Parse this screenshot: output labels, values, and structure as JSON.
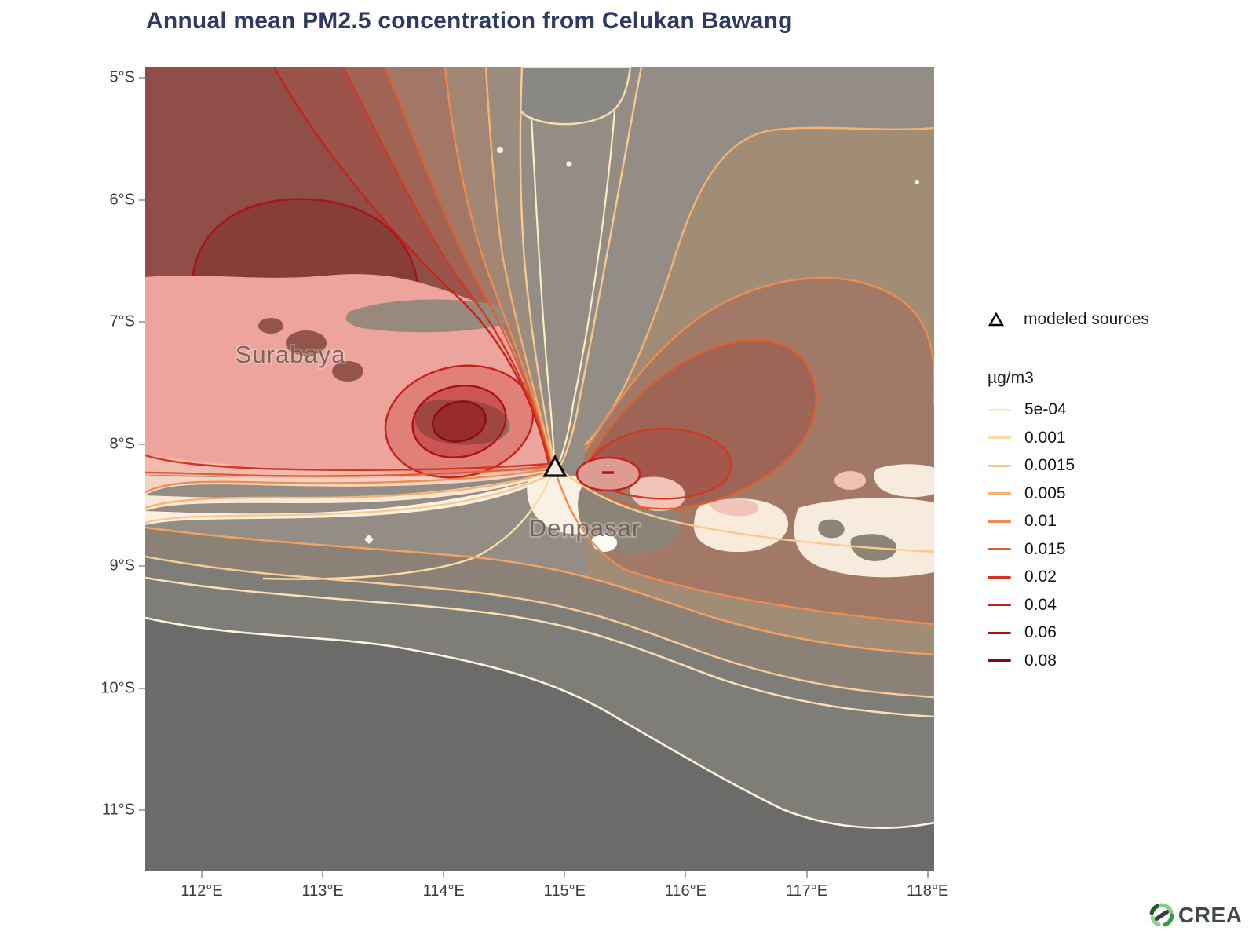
{
  "title": "Annual mean PM2.5 concentration from Celukan Bawang",
  "legend": {
    "marker_label": "modeled sources",
    "unit_label": "µg/m3"
  },
  "branding": {
    "logo_text": "CREA"
  },
  "map_colors": {
    "ocean_dark": "#6B6B6A",
    "sea_base_gray": "#938D85",
    "land_cream": "#F9EBDC",
    "plume_dark_red_sea": "#873D38",
    "plume_pink_land": "#ECA49D"
  },
  "chart_data": {
    "type": "contour_map",
    "title": "Annual mean PM2.5 concentration from Celukan Bawang",
    "unit": "µg/m3",
    "legend_position": "right",
    "levels": [
      {
        "label": "5e-04",
        "value": 0.0005,
        "color": "#FDEDC2"
      },
      {
        "label": "0.001",
        "value": 0.001,
        "color": "#FBDCA4"
      },
      {
        "label": "0.0015",
        "value": 0.0015,
        "color": "#F9C98D"
      },
      {
        "label": "0.005",
        "value": 0.005,
        "color": "#F7B272"
      },
      {
        "label": "0.01",
        "value": 0.01,
        "color": "#F08C50"
      },
      {
        "label": "0.015",
        "value": 0.015,
        "color": "#E25E31"
      },
      {
        "label": "0.02",
        "value": 0.02,
        "color": "#D03722"
      },
      {
        "label": "0.04",
        "value": 0.04,
        "color": "#C3231B"
      },
      {
        "label": "0.06",
        "value": 0.06,
        "color": "#A91318"
      },
      {
        "label": "0.08",
        "value": 0.08,
        "color": "#8E0A12"
      }
    ],
    "x_axis": {
      "labels": [
        "112°E",
        "113°E",
        "114°E",
        "115°E",
        "116°E",
        "117°E",
        "118°E"
      ],
      "values": [
        112,
        113,
        114,
        115,
        116,
        117,
        118
      ],
      "range": [
        111.5,
        118.1
      ]
    },
    "y_axis": {
      "labels": [
        "5°S",
        "6°S",
        "7°S",
        "8°S",
        "9°S",
        "10°S",
        "11°S"
      ],
      "values": [
        5,
        6,
        7,
        8,
        9,
        10,
        11
      ],
      "range": [
        4.9,
        11.5
      ]
    },
    "modeled_source": {
      "label": "modeled sources",
      "marker": "triangle",
      "lon": 114.9,
      "lat": -8.2
    },
    "cities": [
      {
        "name": "Surabaya",
        "lon": 112.7,
        "lat": -7.3
      },
      {
        "name": "Denpasar",
        "lon": 115.2,
        "lat": -8.7
      }
    ]
  }
}
